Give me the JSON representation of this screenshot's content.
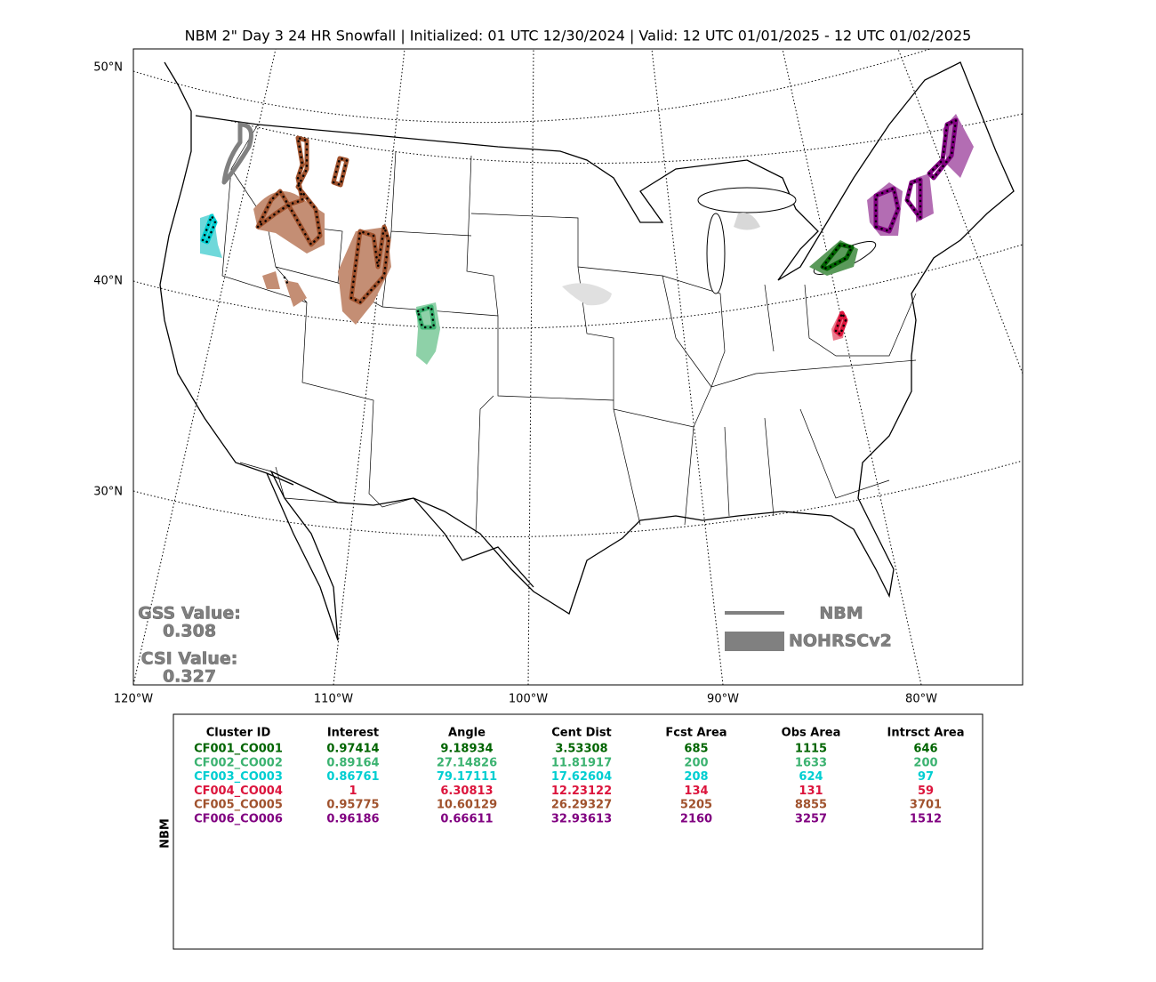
{
  "title": "NBM 2\" Day 3 24 HR Snowfall | Initialized: 01 UTC 12/30/2024 | Valid: 12 UTC 01/01/2025 - 12 UTC 01/02/2025",
  "map": {
    "lat_labels": [
      "50°N",
      "40°N",
      "30°N"
    ],
    "lon_labels": [
      "120°W",
      "110°W",
      "100°W",
      "90°W",
      "80°W"
    ],
    "gss_label": "GSS Value:",
    "gss_value": "0.308",
    "csi_label": "CSI Value:",
    "csi_value": "0.327",
    "legend": [
      "NBM",
      "NOHRSCv2"
    ]
  },
  "table": {
    "side_label": "NBM",
    "headers": [
      "Cluster ID",
      "Interest",
      "Angle",
      "Cent Dist",
      "Fcst Area",
      "Obs Area",
      "Intrsct Area"
    ],
    "rows": [
      {
        "color": "#006400",
        "cells": [
          "CF001_CO001",
          0.97414,
          9.18934,
          3.53308,
          685,
          1115,
          646
        ]
      },
      {
        "color": "#3cb371",
        "cells": [
          "CF002_CO002",
          0.89164,
          27.14826,
          11.81917,
          200,
          1633,
          200
        ]
      },
      {
        "color": "#00ced1",
        "cells": [
          "CF003_CO003",
          0.86761,
          79.17111,
          17.62604,
          208,
          624,
          97
        ]
      },
      {
        "color": "#dc143c",
        "cells": [
          "CF004_CO004",
          1,
          6.30813,
          12.23122,
          134,
          131,
          59
        ]
      },
      {
        "color": "#a0522d",
        "cells": [
          "CF005_CO005",
          0.95775,
          10.60129,
          26.29327,
          5205,
          8855,
          3701
        ]
      },
      {
        "color": "#800080",
        "cells": [
          "CF006_CO006",
          0.96186,
          0.66611,
          32.93613,
          2160,
          3257,
          1512
        ]
      }
    ]
  }
}
